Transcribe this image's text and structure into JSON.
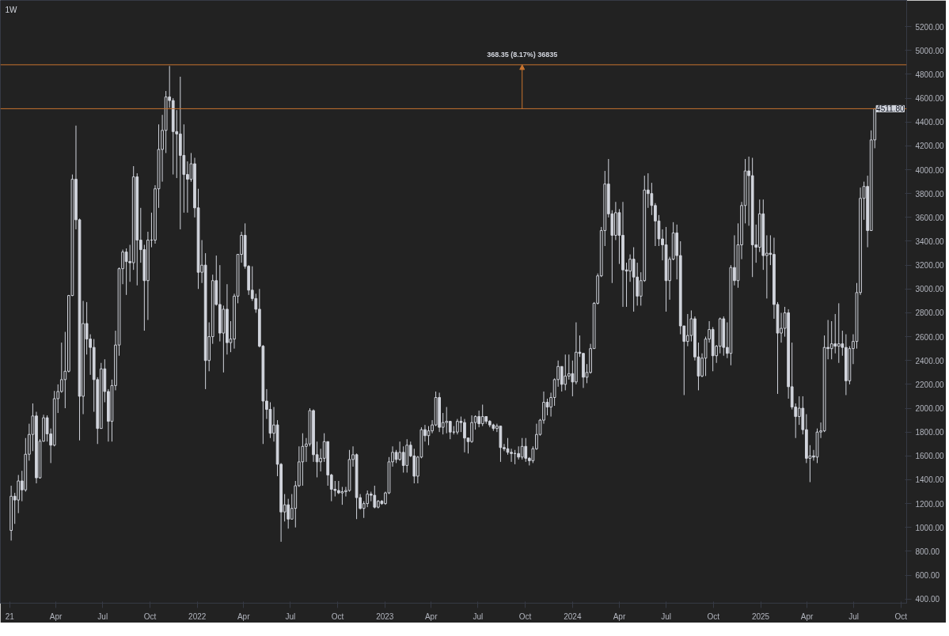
{
  "chart_data": {
    "type": "candlestick",
    "title": "1W",
    "grid": false,
    "xlim": [
      "2020-12-14",
      "2025-10-12"
    ],
    "xticks": [
      {
        "value": "2021-01-01",
        "label": "21"
      },
      {
        "value": "2021-04-01",
        "label": "Apr"
      },
      {
        "value": "2021-07-01",
        "label": "Jul"
      },
      {
        "value": "2021-10-01",
        "label": "Oct"
      },
      {
        "value": "2022-01-01",
        "label": "2022"
      },
      {
        "value": "2022-04-01",
        "label": "Apr"
      },
      {
        "value": "2022-07-01",
        "label": "Jul"
      },
      {
        "value": "2022-10-01",
        "label": "Oct"
      },
      {
        "value": "2023-01-01",
        "label": "2023"
      },
      {
        "value": "2023-04-01",
        "label": "Apr"
      },
      {
        "value": "2023-07-01",
        "label": "Jul"
      },
      {
        "value": "2023-10-01",
        "label": "Oct"
      },
      {
        "value": "2024-01-01",
        "label": "2024"
      },
      {
        "value": "2024-04-01",
        "label": "Apr"
      },
      {
        "value": "2024-07-01",
        "label": "Jul"
      },
      {
        "value": "2024-10-01",
        "label": "Oct"
      },
      {
        "value": "2025-01-01",
        "label": "2025"
      },
      {
        "value": "2025-04-01",
        "label": "Apr"
      },
      {
        "value": "2025-07-01",
        "label": "Jul"
      },
      {
        "value": "2025-10-01",
        "label": "Oct"
      }
    ],
    "ylim": [
      365,
      5420
    ],
    "yticks": [
      {
        "value": 400,
        "label": "400.00"
      },
      {
        "value": 600,
        "label": "600.00"
      },
      {
        "value": 800,
        "label": "800.00"
      },
      {
        "value": 1000,
        "label": "1000.00"
      },
      {
        "value": 1200,
        "label": "1200.00"
      },
      {
        "value": 1400,
        "label": "1400.00"
      },
      {
        "value": 1600,
        "label": "1600.00"
      },
      {
        "value": 1800,
        "label": "1800.00"
      },
      {
        "value": 2000,
        "label": "2000.00"
      },
      {
        "value": 2200,
        "label": "2200.00"
      },
      {
        "value": 2400,
        "label": "2400.00"
      },
      {
        "value": 2600,
        "label": "2600.00"
      },
      {
        "value": 2800,
        "label": "2800.00"
      },
      {
        "value": 3000,
        "label": "3000.00"
      },
      {
        "value": 3200,
        "label": "3200.00"
      },
      {
        "value": 3400,
        "label": "3400.00"
      },
      {
        "value": 3600,
        "label": "3600.00"
      },
      {
        "value": 3800,
        "label": "3800.00"
      },
      {
        "value": 4000,
        "label": "4000.00"
      },
      {
        "value": 4200,
        "label": "4200.00"
      },
      {
        "value": 4400,
        "label": "4400.00"
      },
      {
        "value": 4600,
        "label": "4600.00"
      },
      {
        "value": 4800,
        "label": "4800.00"
      },
      {
        "value": 5000,
        "label": "5000.00"
      },
      {
        "value": 5200,
        "label": "5200.00"
      }
    ],
    "ref_lines": [
      {
        "axis": "y",
        "value": 4880.15,
        "label": null,
        "color": "#c8742f"
      },
      {
        "axis": "y",
        "value": 4511.8,
        "label": "4511.80",
        "color": "#c8742f"
      }
    ],
    "annotations": [
      {
        "text": "368.35 (8.17%) 36835",
        "x": "2023-09-25",
        "y": 4880.15
      }
    ],
    "x": [
      "2021-01-04",
      "2021-01-11",
      "2021-01-18",
      "2021-01-25",
      "2021-02-01",
      "2021-02-08",
      "2021-02-15",
      "2021-02-22",
      "2021-03-01",
      "2021-03-08",
      "2021-03-15",
      "2021-03-22",
      "2021-03-29",
      "2021-04-05",
      "2021-04-12",
      "2021-04-19",
      "2021-04-26",
      "2021-05-03",
      "2021-05-10",
      "2021-05-17",
      "2021-05-24",
      "2021-05-31",
      "2021-06-07",
      "2021-06-14",
      "2021-06-21",
      "2021-06-28",
      "2021-07-05",
      "2021-07-12",
      "2021-07-19",
      "2021-07-26",
      "2021-08-02",
      "2021-08-09",
      "2021-08-16",
      "2021-08-23",
      "2021-08-30",
      "2021-09-06",
      "2021-09-13",
      "2021-09-20",
      "2021-09-27",
      "2021-10-04",
      "2021-10-11",
      "2021-10-18",
      "2021-10-25",
      "2021-11-01",
      "2021-11-08",
      "2021-11-15",
      "2021-11-22",
      "2021-11-29",
      "2021-12-06",
      "2021-12-13",
      "2021-12-20",
      "2021-12-27",
      "2022-01-03",
      "2022-01-10",
      "2022-01-17",
      "2022-01-24",
      "2022-01-31",
      "2022-02-07",
      "2022-02-14",
      "2022-02-21",
      "2022-02-28",
      "2022-03-07",
      "2022-03-14",
      "2022-03-21",
      "2022-03-28",
      "2022-04-04",
      "2022-04-11",
      "2022-04-18",
      "2022-04-25",
      "2022-05-02",
      "2022-05-09",
      "2022-05-16",
      "2022-05-23",
      "2022-05-30",
      "2022-06-06",
      "2022-06-13",
      "2022-06-20",
      "2022-06-27",
      "2022-07-04",
      "2022-07-11",
      "2022-07-18",
      "2022-07-25",
      "2022-08-01",
      "2022-08-08",
      "2022-08-15",
      "2022-08-22",
      "2022-08-29",
      "2022-09-05",
      "2022-09-12",
      "2022-09-19",
      "2022-09-26",
      "2022-10-03",
      "2022-10-10",
      "2022-10-17",
      "2022-10-24",
      "2022-10-31",
      "2022-11-07",
      "2022-11-14",
      "2022-11-21",
      "2022-11-28",
      "2022-12-05",
      "2022-12-12",
      "2022-12-19",
      "2022-12-26",
      "2023-01-02",
      "2023-01-09",
      "2023-01-16",
      "2023-01-23",
      "2023-01-30",
      "2023-02-06",
      "2023-02-13",
      "2023-02-20",
      "2023-02-27",
      "2023-03-06",
      "2023-03-13",
      "2023-03-20",
      "2023-03-27",
      "2023-04-03",
      "2023-04-10",
      "2023-04-17",
      "2023-04-24",
      "2023-05-01",
      "2023-05-08",
      "2023-05-15",
      "2023-05-22",
      "2023-05-29",
      "2023-06-05",
      "2023-06-12",
      "2023-06-19",
      "2023-06-26",
      "2023-07-03",
      "2023-07-10",
      "2023-07-17",
      "2023-07-24",
      "2023-07-31",
      "2023-08-07",
      "2023-08-14",
      "2023-08-21",
      "2023-08-28",
      "2023-09-04",
      "2023-09-11",
      "2023-09-18",
      "2023-09-25",
      "2023-10-02",
      "2023-10-09",
      "2023-10-16",
      "2023-10-23",
      "2023-10-30",
      "2023-11-06",
      "2023-11-13",
      "2023-11-20",
      "2023-11-27",
      "2023-12-04",
      "2023-12-11",
      "2023-12-18",
      "2023-12-25",
      "2024-01-01",
      "2024-01-08",
      "2024-01-15",
      "2024-01-22",
      "2024-01-29",
      "2024-02-05",
      "2024-02-12",
      "2024-02-19",
      "2024-02-26",
      "2024-03-04",
      "2024-03-11",
      "2024-03-18",
      "2024-03-25",
      "2024-04-01",
      "2024-04-08",
      "2024-04-15",
      "2024-04-22",
      "2024-04-29",
      "2024-05-06",
      "2024-05-13",
      "2024-05-20",
      "2024-05-27",
      "2024-06-03",
      "2024-06-10",
      "2024-06-17",
      "2024-06-24",
      "2024-07-01",
      "2024-07-08",
      "2024-07-15",
      "2024-07-22",
      "2024-07-29",
      "2024-08-05",
      "2024-08-12",
      "2024-08-19",
      "2024-08-26",
      "2024-09-02",
      "2024-09-09",
      "2024-09-16",
      "2024-09-23",
      "2024-09-30",
      "2024-10-07",
      "2024-10-14",
      "2024-10-21",
      "2024-10-28",
      "2024-11-04",
      "2024-11-11",
      "2024-11-18",
      "2024-11-25",
      "2024-12-02",
      "2024-12-09",
      "2024-12-16",
      "2024-12-23",
      "2024-12-30",
      "2025-01-06",
      "2025-01-13",
      "2025-01-20",
      "2025-01-27",
      "2025-02-03",
      "2025-02-10",
      "2025-02-17",
      "2025-02-24",
      "2025-03-03",
      "2025-03-10",
      "2025-03-17",
      "2025-03-24",
      "2025-03-31",
      "2025-04-07",
      "2025-04-14",
      "2025-04-21",
      "2025-04-28",
      "2025-05-05",
      "2025-05-12",
      "2025-05-19",
      "2025-05-26",
      "2025-06-02",
      "2025-06-09",
      "2025-06-16",
      "2025-06-23",
      "2025-06-30",
      "2025-07-07",
      "2025-07-14",
      "2025-07-21",
      "2025-07-28",
      "2025-08-04",
      "2025-08-11"
    ],
    "ohlc": [
      [
        975,
        1350,
        890,
        1262
      ],
      [
        1262,
        1290,
        1030,
        1230
      ],
      [
        1230,
        1440,
        1120,
        1390
      ],
      [
        1390,
        1475,
        1220,
        1315
      ],
      [
        1315,
        1750,
        1300,
        1614
      ],
      [
        1614,
        1870,
        1560,
        1780
      ],
      [
        1780,
        2040,
        1640,
        1935
      ],
      [
        1935,
        1970,
        1370,
        1416
      ],
      [
        1416,
        1740,
        1410,
        1723
      ],
      [
        1723,
        1945,
        1720,
        1920
      ],
      [
        1920,
        1940,
        1720,
        1785
      ],
      [
        1785,
        1830,
        1540,
        1690
      ],
      [
        1690,
        2145,
        1680,
        2080
      ],
      [
        2080,
        2200,
        1960,
        2140
      ],
      [
        2140,
        2550,
        2130,
        2240
      ],
      [
        2240,
        2640,
        2000,
        2310
      ],
      [
        2310,
        2950,
        2300,
        2945
      ],
      [
        2945,
        3960,
        2940,
        3920
      ],
      [
        3920,
        4370,
        3500,
        3580
      ],
      [
        3580,
        3590,
        1730,
        2100
      ],
      [
        2100,
        2900,
        1950,
        2710
      ],
      [
        2710,
        2890,
        2450,
        2580
      ],
      [
        2580,
        2620,
        2280,
        2510
      ],
      [
        2510,
        2580,
        1970,
        2240
      ],
      [
        2240,
        2260,
        1700,
        1830
      ],
      [
        1830,
        2380,
        1830,
        2330
      ],
      [
        2330,
        2410,
        2050,
        2140
      ],
      [
        2140,
        2160,
        1720,
        1890
      ],
      [
        1890,
        2240,
        1720,
        2190
      ],
      [
        2190,
        2650,
        2150,
        2530
      ],
      [
        2530,
        3180,
        2440,
        3170
      ],
      [
        3170,
        3330,
        3040,
        3310
      ],
      [
        3310,
        3340,
        2950,
        3230
      ],
      [
        3230,
        3370,
        3060,
        3220
      ],
      [
        3220,
        4030,
        3160,
        3940
      ],
      [
        3940,
        3970,
        3030,
        3410
      ],
      [
        3410,
        3680,
        3220,
        3330
      ],
      [
        3330,
        3370,
        2650,
        3070
      ],
      [
        3070,
        3480,
        2740,
        3410
      ],
      [
        3410,
        3640,
        3350,
        3410
      ],
      [
        3410,
        3870,
        3380,
        3840
      ],
      [
        3840,
        4380,
        3680,
        4170
      ],
      [
        4170,
        4460,
        3900,
        4330
      ],
      [
        4330,
        4660,
        4140,
        4610
      ],
      [
        4610,
        4870,
        4520,
        4580
      ],
      [
        4580,
        4600,
        3960,
        4320
      ],
      [
        4320,
        4500,
        3930,
        4300
      ],
      [
        4300,
        4780,
        3500,
        4120
      ],
      [
        4120,
        4380,
        3640,
        3960
      ],
      [
        3960,
        4070,
        3640,
        3920
      ],
      [
        3920,
        4140,
        3900,
        4050
      ],
      [
        4050,
        4100,
        3600,
        3680
      ],
      [
        3680,
        3840,
        3000,
        3140
      ],
      [
        3140,
        3410,
        3050,
        3200
      ],
      [
        3200,
        3300,
        2160,
        2400
      ],
      [
        2400,
        2720,
        2310,
        2600
      ],
      [
        2600,
        3120,
        2540,
        3070
      ],
      [
        3070,
        3280,
        2860,
        2870
      ],
      [
        2870,
        3200,
        2560,
        2630
      ],
      [
        2630,
        2860,
        2300,
        2830
      ],
      [
        2830,
        3040,
        2450,
        2550
      ],
      [
        2550,
        2730,
        2470,
        2580
      ],
      [
        2580,
        2960,
        2500,
        2940
      ],
      [
        2940,
        3290,
        2880,
        3290
      ],
      [
        3290,
        3480,
        3220,
        3450
      ],
      [
        3450,
        3550,
        3170,
        3190
      ],
      [
        3190,
        3200,
        2950,
        2990
      ],
      [
        2990,
        3190,
        2900,
        2920
      ],
      [
        2920,
        2960,
        2800,
        2830
      ],
      [
        2830,
        3000,
        2510,
        2520
      ],
      [
        2520,
        2530,
        1700,
        2060
      ],
      [
        2060,
        2160,
        1910,
        1990
      ],
      [
        1990,
        2050,
        1750,
        1790
      ],
      [
        1790,
        2010,
        1720,
        1860
      ],
      [
        1860,
        1900,
        1430,
        1530
      ],
      [
        1530,
        1540,
        880,
        1130
      ],
      [
        1130,
        1280,
        1050,
        1190
      ],
      [
        1190,
        1240,
        990,
        1070
      ],
      [
        1070,
        1280,
        1070,
        1160
      ],
      [
        1160,
        1390,
        1000,
        1350
      ],
      [
        1350,
        1680,
        1340,
        1550
      ],
      [
        1550,
        1790,
        1350,
        1680
      ],
      [
        1680,
        1750,
        1550,
        1700
      ],
      [
        1700,
        2000,
        1680,
        1980
      ],
      [
        1980,
        1990,
        1550,
        1610
      ],
      [
        1610,
        1720,
        1420,
        1550
      ],
      [
        1550,
        1660,
        1470,
        1580
      ],
      [
        1580,
        1790,
        1550,
        1720
      ],
      [
        1720,
        1720,
        1350,
        1440
      ],
      [
        1440,
        1450,
        1220,
        1320
      ],
      [
        1320,
        1390,
        1260,
        1310
      ],
      [
        1310,
        1390,
        1280,
        1290
      ],
      [
        1290,
        1340,
        1190,
        1300
      ],
      [
        1300,
        1340,
        1260,
        1310
      ],
      [
        1310,
        1650,
        1300,
        1570
      ],
      [
        1570,
        1680,
        1510,
        1610
      ],
      [
        1610,
        1620,
        1070,
        1250
      ],
      [
        1250,
        1280,
        1150,
        1160
      ],
      [
        1160,
        1220,
        1080,
        1200
      ],
      [
        1200,
        1310,
        1170,
        1280
      ],
      [
        1280,
        1300,
        1220,
        1270
      ],
      [
        1270,
        1350,
        1160,
        1170
      ],
      [
        1170,
        1230,
        1160,
        1220
      ],
      [
        1220,
        1230,
        1190,
        1200
      ],
      [
        1200,
        1300,
        1190,
        1290
      ],
      [
        1290,
        1590,
        1280,
        1550
      ],
      [
        1550,
        1680,
        1510,
        1630
      ],
      [
        1630,
        1650,
        1540,
        1570
      ],
      [
        1570,
        1720,
        1560,
        1630
      ],
      [
        1630,
        1680,
        1460,
        1520
      ],
      [
        1520,
        1740,
        1460,
        1690
      ],
      [
        1690,
        1720,
        1590,
        1600
      ],
      [
        1600,
        1660,
        1370,
        1430
      ],
      [
        1430,
        1600,
        1370,
        1590
      ],
      [
        1590,
        1840,
        1580,
        1820
      ],
      [
        1820,
        1860,
        1720,
        1770
      ],
      [
        1770,
        1850,
        1690,
        1810
      ],
      [
        1810,
        1900,
        1790,
        1860
      ],
      [
        1860,
        2140,
        1850,
        2090
      ],
      [
        2090,
        2130,
        1800,
        1840
      ],
      [
        1840,
        1960,
        1780,
        1880
      ],
      [
        1880,
        2010,
        1790,
        1890
      ],
      [
        1890,
        1890,
        1740,
        1800
      ],
      [
        1800,
        1850,
        1780,
        1800
      ],
      [
        1800,
        1910,
        1780,
        1890
      ],
      [
        1890,
        1930,
        1800,
        1880
      ],
      [
        1880,
        1910,
        1630,
        1750
      ],
      [
        1750,
        1750,
        1620,
        1720
      ],
      [
        1720,
        1940,
        1710,
        1880
      ],
      [
        1880,
        1940,
        1820,
        1930
      ],
      [
        1930,
        1980,
        1840,
        1870
      ],
      [
        1870,
        2030,
        1850,
        1930
      ],
      [
        1930,
        1930,
        1870,
        1890
      ],
      [
        1890,
        1900,
        1840,
        1860
      ],
      [
        1860,
        1870,
        1810,
        1830
      ],
      [
        1830,
        1870,
        1800,
        1850
      ],
      [
        1850,
        1850,
        1550,
        1670
      ],
      [
        1670,
        1700,
        1640,
        1660
      ],
      [
        1660,
        1750,
        1610,
        1630
      ],
      [
        1630,
        1660,
        1550,
        1620
      ],
      [
        1620,
        1650,
        1530,
        1620
      ],
      [
        1620,
        1680,
        1570,
        1590
      ],
      [
        1590,
        1750,
        1570,
        1680
      ],
      [
        1680,
        1750,
        1550,
        1580
      ],
      [
        1580,
        1590,
        1520,
        1560
      ],
      [
        1560,
        1680,
        1540,
        1660
      ],
      [
        1660,
        1870,
        1650,
        1780
      ],
      [
        1780,
        1910,
        1770,
        1900
      ],
      [
        1900,
        2140,
        1870,
        2050
      ],
      [
        2050,
        2080,
        1940,
        2010
      ],
      [
        2010,
        2130,
        1930,
        2090
      ],
      [
        2090,
        2250,
        2020,
        2240
      ],
      [
        2240,
        2400,
        2180,
        2350
      ],
      [
        2350,
        2350,
        2140,
        2200
      ],
      [
        2200,
        2450,
        2150,
        2270
      ],
      [
        2270,
        2450,
        2240,
        2290
      ],
      [
        2290,
        2400,
        2100,
        2220
      ],
      [
        2220,
        2720,
        2200,
        2470
      ],
      [
        2470,
        2610,
        2430,
        2460
      ],
      [
        2460,
        2460,
        2170,
        2260
      ],
      [
        2260,
        2370,
        2210,
        2300
      ],
      [
        2300,
        2540,
        2290,
        2500
      ],
      [
        2500,
        2890,
        2500,
        2880
      ],
      [
        2880,
        3130,
        2870,
        3110
      ],
      [
        3110,
        3520,
        3100,
        3490
      ],
      [
        3490,
        3990,
        3360,
        3880
      ],
      [
        3880,
        4090,
        3600,
        3630
      ],
      [
        3630,
        3660,
        3050,
        3450
      ],
      [
        3450,
        3730,
        3410,
        3640
      ],
      [
        3640,
        3670,
        3210,
        3450
      ],
      [
        3450,
        3730,
        2850,
        3160
      ],
      [
        3160,
        3220,
        2850,
        3150
      ],
      [
        3150,
        3290,
        3060,
        3250
      ],
      [
        3250,
        3350,
        2810,
        3100
      ],
      [
        3100,
        3220,
        2860,
        2940
      ],
      [
        2940,
        3140,
        2860,
        3070
      ],
      [
        3070,
        3950,
        3060,
        3830
      ],
      [
        3830,
        3970,
        3680,
        3800
      ],
      [
        3800,
        3890,
        3620,
        3700
      ],
      [
        3700,
        3720,
        3360,
        3570
      ],
      [
        3570,
        3620,
        3360,
        3420
      ],
      [
        3420,
        3500,
        3240,
        3370
      ],
      [
        3370,
        3520,
        2810,
        3070
      ],
      [
        3070,
        3270,
        2910,
        3250
      ],
      [
        3250,
        3560,
        3240,
        3470
      ],
      [
        3470,
        3540,
        3080,
        3280
      ],
      [
        3280,
        3400,
        2620,
        2690
      ],
      [
        2690,
        2690,
        2110,
        2560
      ],
      [
        2560,
        2790,
        2520,
        2610
      ],
      [
        2610,
        2820,
        2560,
        2750
      ],
      [
        2750,
        2770,
        2400,
        2430
      ],
      [
        2430,
        2550,
        2150,
        2270
      ],
      [
        2270,
        2460,
        2260,
        2420
      ],
      [
        2420,
        2600,
        2270,
        2580
      ],
      [
        2580,
        2730,
        2550,
        2660
      ],
      [
        2660,
        2680,
        2310,
        2440
      ],
      [
        2440,
        2530,
        2380,
        2520
      ],
      [
        2520,
        2760,
        2460,
        2750
      ],
      [
        2750,
        2770,
        2440,
        2510
      ],
      [
        2510,
        2720,
        2420,
        2460
      ],
      [
        2460,
        3200,
        2360,
        3180
      ],
      [
        3180,
        3450,
        3030,
        3070
      ],
      [
        3070,
        3550,
        3010,
        3370
      ],
      [
        3370,
        3730,
        3250,
        3700
      ],
      [
        3700,
        4090,
        3550,
        3990
      ],
      [
        3990,
        4110,
        3530,
        3950
      ],
      [
        3950,
        4100,
        3100,
        3370
      ],
      [
        3370,
        3540,
        3220,
        3350
      ],
      [
        3350,
        3750,
        3310,
        3630
      ],
      [
        3630,
        3750,
        3160,
        3280
      ],
      [
        3280,
        3450,
        2920,
        3300
      ],
      [
        3300,
        3450,
        3200,
        3290
      ],
      [
        3290,
        3430,
        2750,
        2870
      ],
      [
        2870,
        2890,
        2120,
        2630
      ],
      [
        2630,
        2800,
        2550,
        2670
      ],
      [
        2670,
        2850,
        2600,
        2800
      ],
      [
        2800,
        2830,
        2080,
        2180
      ],
      [
        2180,
        2550,
        1990,
        2010
      ],
      [
        2010,
        2040,
        1750,
        1930
      ],
      [
        1930,
        2100,
        1860,
        2000
      ],
      [
        2000,
        2100,
        1780,
        1820
      ],
      [
        1820,
        1950,
        1540,
        1580
      ],
      [
        1580,
        1690,
        1380,
        1600
      ],
      [
        1600,
        1650,
        1560,
        1590
      ],
      [
        1590,
        1830,
        1540,
        1800
      ],
      [
        1800,
        1880,
        1750,
        1810
      ],
      [
        1810,
        2610,
        1800,
        2510
      ],
      [
        2510,
        2740,
        2410,
        2500
      ],
      [
        2500,
        2730,
        2410,
        2540
      ],
      [
        2540,
        2790,
        2460,
        2520
      ],
      [
        2520,
        2880,
        2380,
        2540
      ],
      [
        2540,
        2650,
        2440,
        2510
      ],
      [
        2510,
        2620,
        2110,
        2230
      ],
      [
        2230,
        2520,
        2200,
        2500
      ],
      [
        2500,
        2620,
        2370,
        2560
      ],
      [
        2560,
        3050,
        2500,
        2970
      ],
      [
        2970,
        3850,
        2950,
        3760
      ],
      [
        3760,
        3900,
        3580,
        3860
      ],
      [
        3860,
        3950,
        3350,
        3490
      ],
      [
        3490,
        4330,
        3490,
        4250
      ],
      [
        4250,
        4511.8,
        4180,
        4511.8
      ]
    ]
  }
}
